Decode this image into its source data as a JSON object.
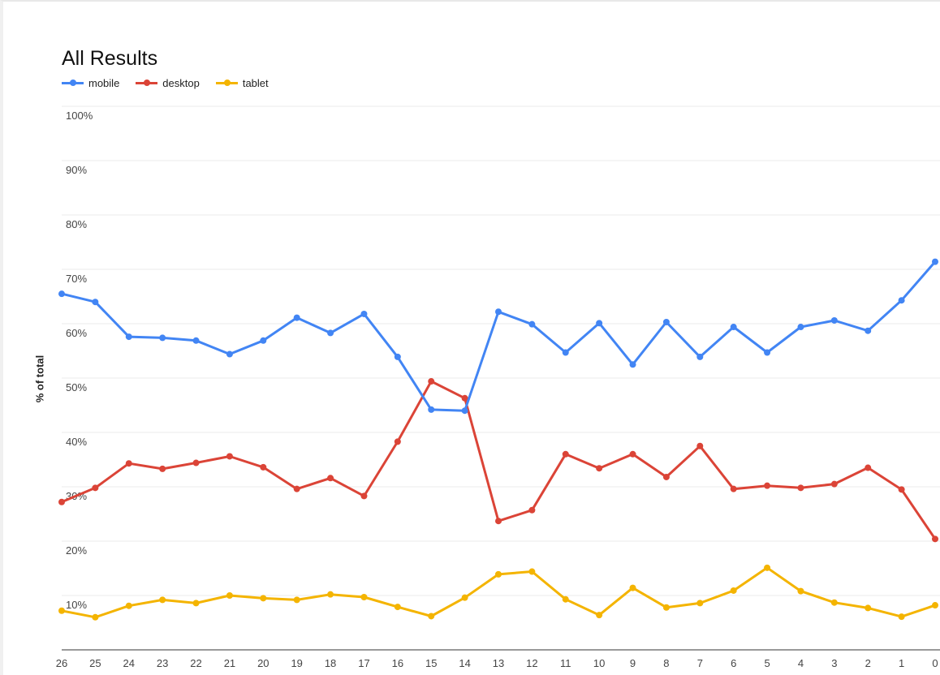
{
  "chart_data": {
    "type": "line",
    "title": "All Results",
    "ylabel": "% of total",
    "xlabel": "",
    "ylim": [
      0,
      100
    ],
    "y_ticks": [
      "10%",
      "20%",
      "30%",
      "40%",
      "50%",
      "60%",
      "70%",
      "80%",
      "90%",
      "100%"
    ],
    "y_tick_values": [
      10,
      20,
      30,
      40,
      50,
      60,
      70,
      80,
      90,
      100
    ],
    "categories": [
      "26",
      "25",
      "24",
      "23",
      "22",
      "21",
      "20",
      "19",
      "18",
      "17",
      "16",
      "15",
      "14",
      "13",
      "12",
      "11",
      "10",
      "9",
      "8",
      "7",
      "6",
      "5",
      "4",
      "3",
      "2",
      "1",
      "0"
    ],
    "legend_position": "top-left",
    "grid": true,
    "series": [
      {
        "name": "mobile",
        "color": "#4285f4",
        "values": [
          65.5,
          64.0,
          57.6,
          57.4,
          56.9,
          54.4,
          56.9,
          61.1,
          58.3,
          61.8,
          53.9,
          44.2,
          44.0,
          62.2,
          59.9,
          54.7,
          60.1,
          52.5,
          60.3,
          53.9,
          59.4,
          54.7,
          59.4,
          60.6,
          58.7,
          64.3,
          71.4
        ]
      },
      {
        "name": "desktop",
        "color": "#db4437",
        "values": [
          27.2,
          29.8,
          34.3,
          33.3,
          34.4,
          35.6,
          33.6,
          29.6,
          31.6,
          28.3,
          38.3,
          49.4,
          46.3,
          23.7,
          25.7,
          36.0,
          33.4,
          36.0,
          31.8,
          37.5,
          29.6,
          30.2,
          29.8,
          30.5,
          33.5,
          29.5,
          20.4
        ]
      },
      {
        "name": "tablet",
        "color": "#f4b400",
        "values": [
          7.2,
          6.0,
          8.1,
          9.2,
          8.6,
          10.0,
          9.5,
          9.2,
          10.2,
          9.7,
          7.9,
          6.2,
          9.6,
          13.9,
          14.4,
          9.3,
          6.4,
          11.4,
          7.8,
          8.6,
          10.9,
          15.1,
          10.8,
          8.7,
          7.7,
          6.1,
          8.2
        ]
      }
    ]
  }
}
